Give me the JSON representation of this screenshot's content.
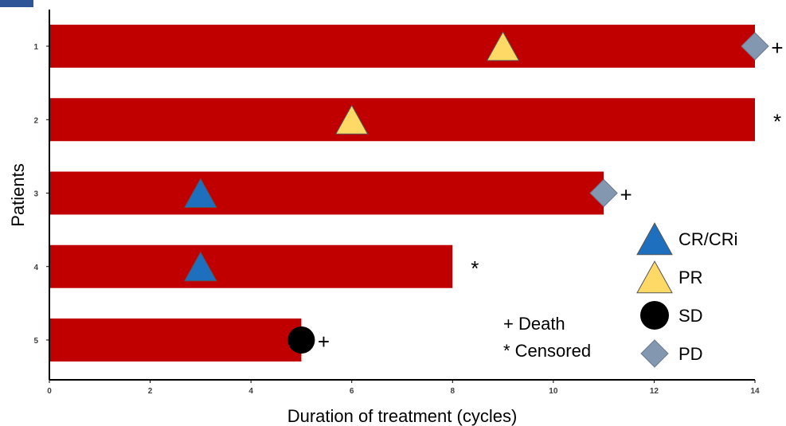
{
  "chart_data": {
    "type": "swimmer",
    "xlabel": "Duration of treatment (cycles)",
    "ylabel": "Patients",
    "xlim": [
      0,
      14
    ],
    "x_ticks": [
      "0",
      "2",
      "4",
      "6",
      "8",
      "10",
      "12",
      "14"
    ],
    "categories": [
      "1",
      "2",
      "3",
      "4",
      "5"
    ],
    "values": [
      14,
      14,
      11,
      8,
      5
    ],
    "bar_color": "#c00000",
    "bar_marks": [
      "+",
      "*",
      "+",
      "*",
      "+"
    ],
    "events": [
      {
        "patient": "1",
        "x": 9,
        "response": "PR"
      },
      {
        "patient": "1",
        "x": 14,
        "response": "PD"
      },
      {
        "patient": "2",
        "x": 6,
        "response": "PR"
      },
      {
        "patient": "3",
        "x": 3,
        "response": "CR/CRi"
      },
      {
        "patient": "3",
        "x": 11,
        "response": "PD"
      },
      {
        "patient": "4",
        "x": 3,
        "response": "CR/CRi"
      },
      {
        "patient": "5",
        "x": 5,
        "response": "SD"
      }
    ],
    "legend": [
      {
        "label": "CR/CRi",
        "shape": "triangle",
        "color": "#1f6fbf"
      },
      {
        "label": "PR",
        "shape": "triangle",
        "color": "#ffd966"
      },
      {
        "label": "SD",
        "shape": "circle",
        "color": "#000000"
      },
      {
        "label": "PD",
        "shape": "diamond",
        "color": "#8497b0"
      }
    ],
    "notes": [
      "+ Death",
      "* Censored"
    ],
    "grid": false
  }
}
